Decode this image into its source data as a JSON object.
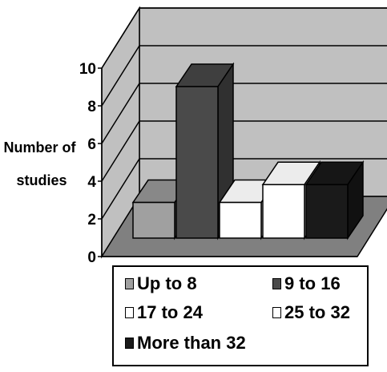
{
  "chart_data": {
    "type": "bar",
    "title": "",
    "xlabel": "",
    "ylabel": "Number of studies",
    "ylim": [
      0,
      10
    ],
    "yticks": [
      0,
      2,
      4,
      6,
      8,
      10
    ],
    "grid": true,
    "three_d": true,
    "legend_position": "bottom",
    "series": [
      {
        "name": "Up to 8",
        "value": 2,
        "color": "#a0a0a0"
      },
      {
        "name": "9 to 16",
        "value": 8.5,
        "color": "#4a4a4a"
      },
      {
        "name": "17 to 24",
        "value": 2,
        "color": "#ffffff"
      },
      {
        "name": "25 to 32",
        "value": 3,
        "color": "#ffffff"
      },
      {
        "name": "More than 32",
        "value": 3,
        "color": "#1a1a1a"
      }
    ]
  },
  "colors": {
    "wall": "#c0c0c0",
    "floor": "#808080",
    "gridline": "#000000"
  }
}
